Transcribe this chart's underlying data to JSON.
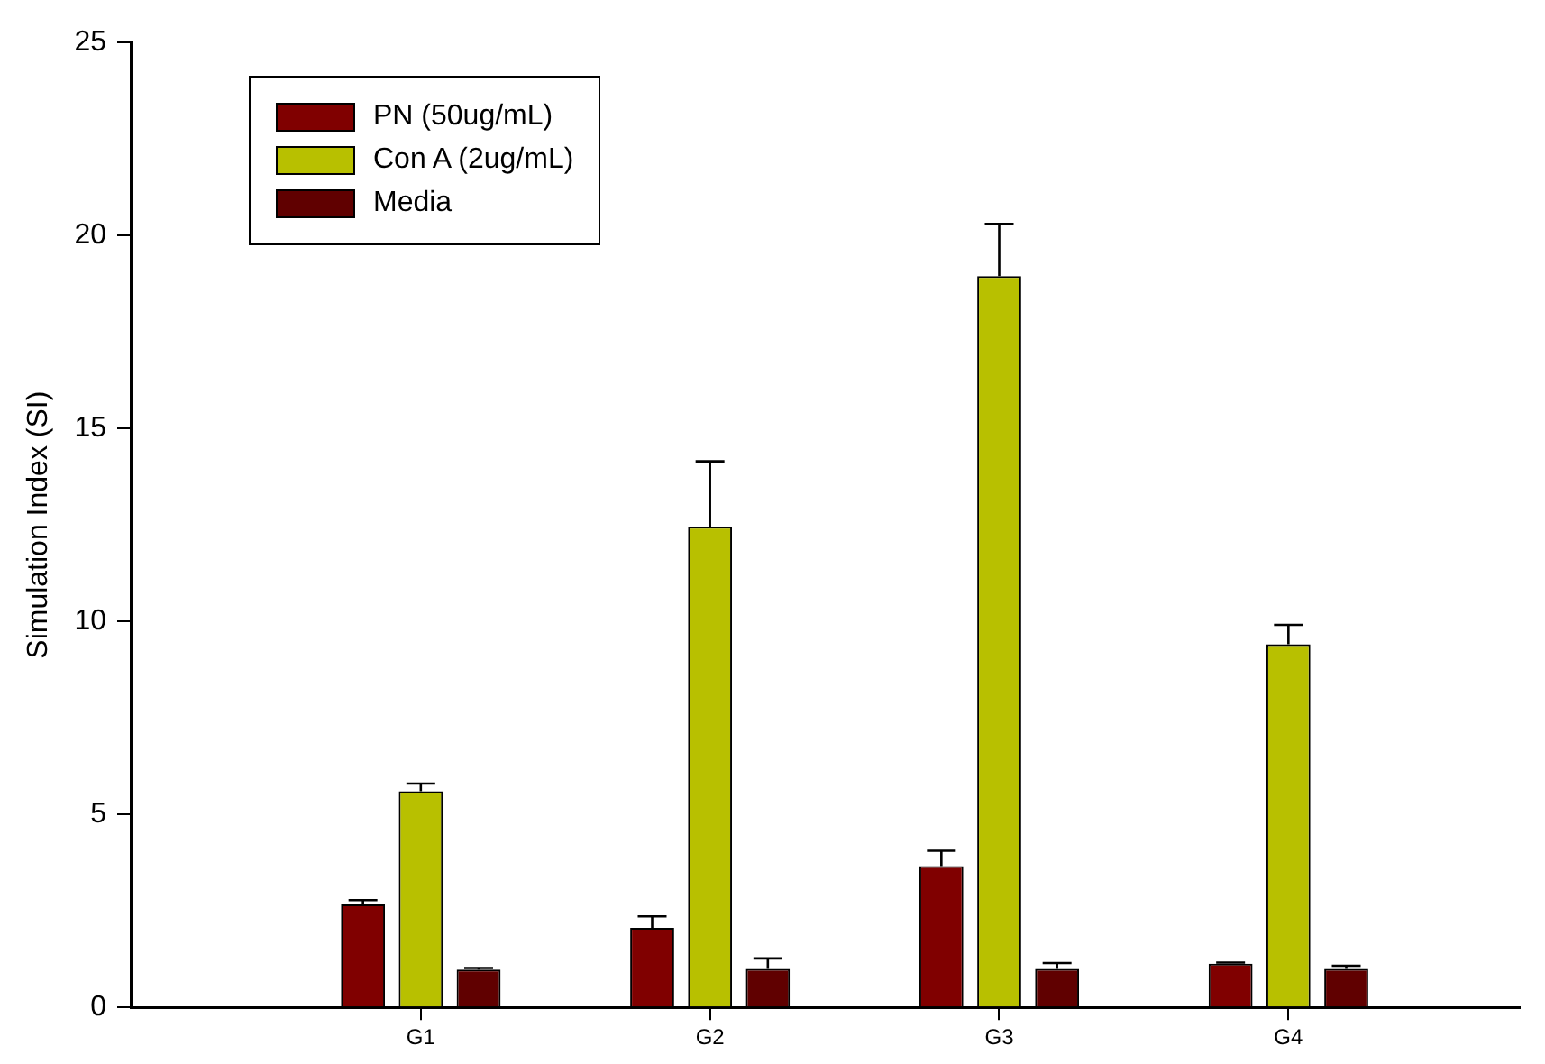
{
  "chart_data": {
    "type": "bar",
    "ylabel": "Simulation Index (SI)",
    "categories": [
      "G1",
      "G2",
      "G3",
      "G4"
    ],
    "series": [
      {
        "name": "PN (50ug/mL)",
        "color": "#800000",
        "values": [
          2.67,
          2.06,
          3.66,
          1.13
        ],
        "errors": [
          0.11,
          0.3,
          0.4,
          0.03
        ]
      },
      {
        "name": "Con A (2ug/mL)",
        "color": "#b8c000",
        "values": [
          5.6,
          12.45,
          18.95,
          9.41
        ],
        "errors": [
          0.2,
          1.7,
          1.35,
          0.5
        ]
      },
      {
        "name": "Media",
        "color": "#600000",
        "values": [
          0.98,
          1.0,
          1.0,
          1.0
        ],
        "errors": [
          0.04,
          0.27,
          0.15,
          0.08
        ]
      }
    ],
    "ylim": [
      0,
      25
    ],
    "yticks": [
      0,
      5,
      10,
      15,
      20,
      25
    ],
    "grid": false,
    "legend": "top left"
  }
}
